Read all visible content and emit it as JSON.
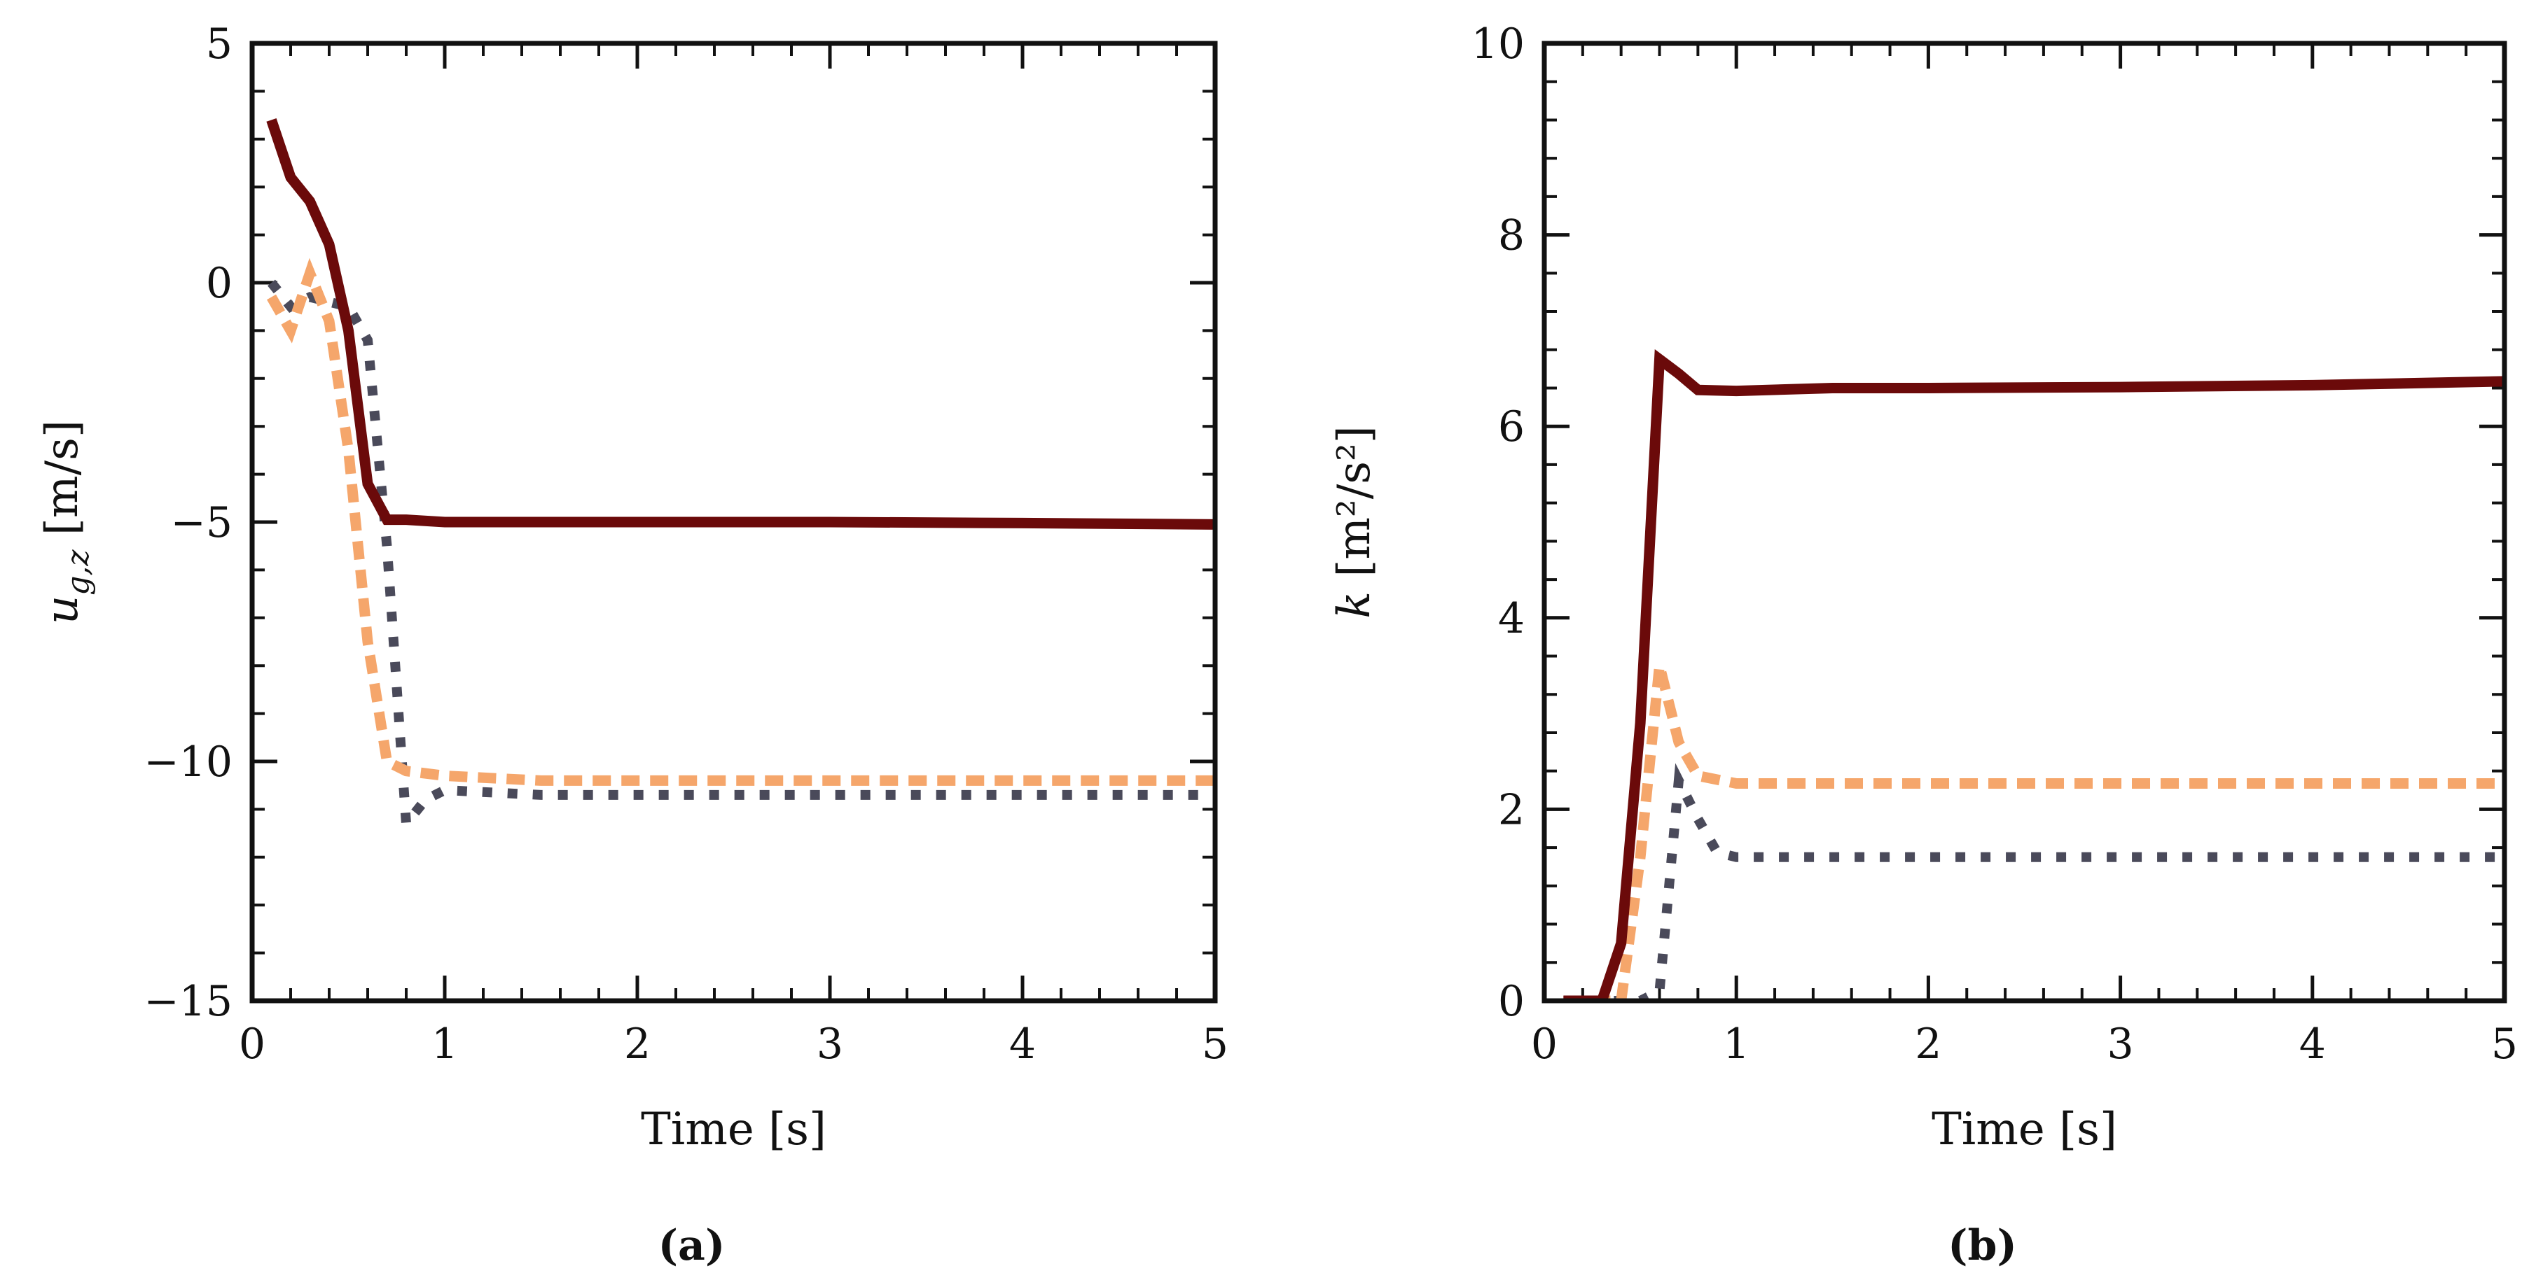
{
  "colors": {
    "series_solid": "#6b0a0a",
    "series_dashed": "#f5a66b",
    "series_dotted": "#4a4a5a",
    "axes": "#111111"
  },
  "chart_data": [
    {
      "type": "line",
      "panel": "a",
      "caption": "(a)",
      "xlabel": "Time [s]",
      "ylabel": "u_{g,z} [m/s]",
      "ylabel_symbol": "u",
      "ylabel_subscript": "g,z",
      "ylabel_unit": " [m/s]",
      "xlim": [
        0,
        5
      ],
      "ylim": [
        -15,
        5
      ],
      "xticks": [
        0,
        1,
        2,
        3,
        4,
        5
      ],
      "xtick_labels": [
        "0",
        "1",
        "2",
        "3",
        "4",
        "5"
      ],
      "yticks": [
        5,
        0,
        -5,
        -10,
        -15
      ],
      "ytick_labels": [
        "5",
        "0",
        "−5",
        "−10",
        "−15"
      ],
      "grid": false,
      "series": [
        {
          "name": "solid",
          "style": "solid",
          "x": [
            0.1,
            0.2,
            0.3,
            0.4,
            0.5,
            0.6,
            0.7,
            0.8,
            1.0,
            1.5,
            2.0,
            3.0,
            4.0,
            5.0
          ],
          "values": [
            3.4,
            2.2,
            1.7,
            0.8,
            -1.0,
            -4.2,
            -4.95,
            -4.95,
            -5.0,
            -5.0,
            -5.0,
            -5.0,
            -5.02,
            -5.05
          ]
        },
        {
          "name": "dashed",
          "style": "dashed",
          "x": [
            0.1,
            0.2,
            0.3,
            0.4,
            0.5,
            0.6,
            0.7,
            0.8,
            1.0,
            1.5,
            2.0,
            3.0,
            4.0,
            5.0
          ],
          "values": [
            -0.3,
            -1.0,
            0.2,
            -0.8,
            -3.5,
            -7.5,
            -10.0,
            -10.2,
            -10.3,
            -10.4,
            -10.4,
            -10.4,
            -10.4,
            -10.4
          ]
        },
        {
          "name": "dotted",
          "style": "dotted",
          "x": [
            0.1,
            0.2,
            0.3,
            0.4,
            0.5,
            0.6,
            0.7,
            0.8,
            0.9,
            1.0,
            1.5,
            2.0,
            3.0,
            4.0,
            5.0
          ],
          "values": [
            0.0,
            -0.5,
            -0.3,
            -0.4,
            -0.5,
            -1.2,
            -5.5,
            -11.3,
            -10.8,
            -10.6,
            -10.7,
            -10.7,
            -10.7,
            -10.7,
            -10.7
          ]
        }
      ]
    },
    {
      "type": "line",
      "panel": "b",
      "caption": "(b)",
      "xlabel": "Time [s]",
      "ylabel": "k [m²/s²]",
      "ylabel_symbol": "k",
      "ylabel_unit": " [m²/s²]",
      "xlim": [
        0,
        5
      ],
      "ylim": [
        0,
        10
      ],
      "xticks": [
        0,
        1,
        2,
        3,
        4,
        5
      ],
      "xtick_labels": [
        "0",
        "1",
        "2",
        "3",
        "4",
        "5"
      ],
      "yticks": [
        0,
        2,
        4,
        6,
        8,
        10
      ],
      "ytick_labels": [
        "0",
        "2",
        "4",
        "6",
        "8",
        "10"
      ],
      "grid": false,
      "series": [
        {
          "name": "solid",
          "style": "solid",
          "x": [
            0.1,
            0.2,
            0.3,
            0.4,
            0.5,
            0.6,
            0.7,
            0.8,
            1.0,
            1.5,
            2.0,
            3.0,
            4.0,
            5.0
          ],
          "values": [
            0,
            0,
            0,
            0.6,
            2.9,
            6.7,
            6.55,
            6.38,
            6.37,
            6.4,
            6.4,
            6.41,
            6.43,
            6.47
          ]
        },
        {
          "name": "dashed",
          "style": "dashed",
          "x": [
            0.1,
            0.2,
            0.3,
            0.4,
            0.5,
            0.6,
            0.7,
            0.8,
            1.0,
            1.5,
            2.0,
            3.0,
            4.0,
            5.0
          ],
          "values": [
            0,
            0,
            0,
            0,
            1.5,
            3.5,
            2.7,
            2.35,
            2.27,
            2.27,
            2.27,
            2.27,
            2.27,
            2.27
          ]
        },
        {
          "name": "dotted",
          "style": "dotted",
          "x": [
            0.1,
            0.2,
            0.3,
            0.4,
            0.5,
            0.6,
            0.7,
            0.8,
            0.9,
            1.0,
            1.5,
            2.0,
            3.0,
            4.0,
            5.0
          ],
          "values": [
            0,
            0,
            0,
            0,
            0,
            0.1,
            2.3,
            1.9,
            1.55,
            1.5,
            1.5,
            1.5,
            1.5,
            1.5,
            1.5
          ]
        }
      ]
    }
  ]
}
